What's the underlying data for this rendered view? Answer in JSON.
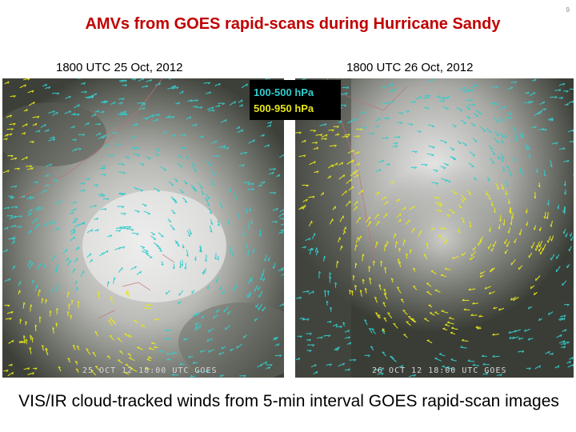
{
  "slide": {
    "title": "AMVs from GOES rapid-scans during Hurricane Sandy",
    "page_number": "9",
    "left_panel": {
      "caption": "1800 UTC  25 Oct, 2012",
      "image_stamp": "25 OCT 12  18:00 UTC  GOES"
    },
    "right_panel": {
      "caption": "1800 UTC  26 Oct, 2012",
      "image_stamp": "26 OCT 12  18:00 UTC  GOES"
    },
    "legend": {
      "upper_level": "100-500 hPa",
      "lower_level": "500-950 hPa",
      "upper_color": "#33cccc",
      "lower_color": "#e6e619"
    },
    "bottom_caption": "VIS/IR cloud-tracked winds from 5-min interval GOES rapid-scan images"
  }
}
